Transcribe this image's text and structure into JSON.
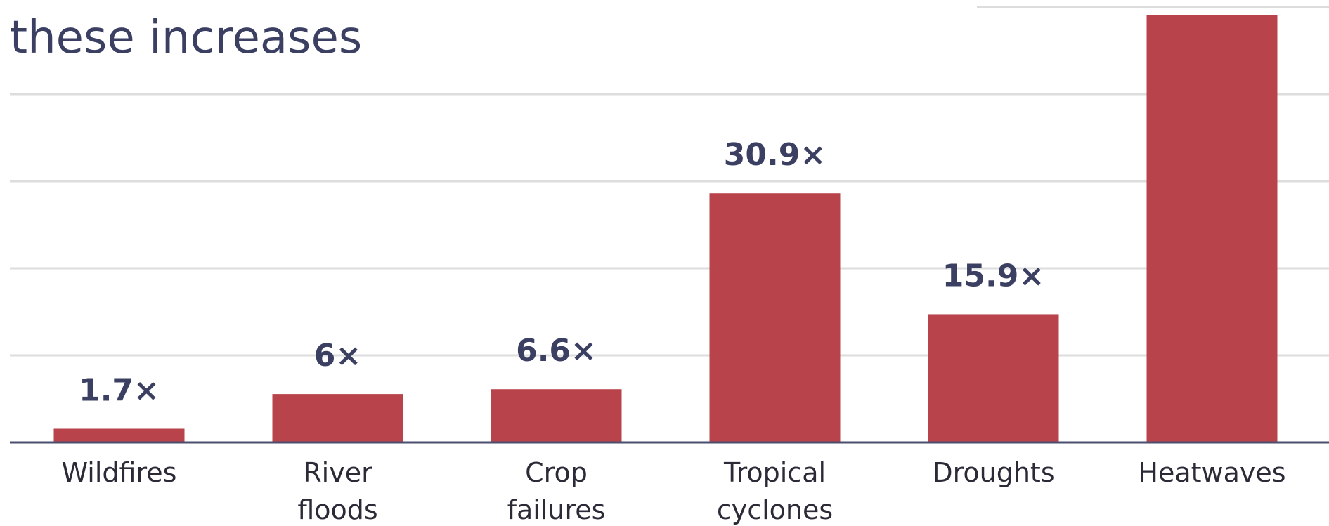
{
  "header": {
    "subtitle": "these increases"
  },
  "chart_data": {
    "type": "bar",
    "categories": [
      "Wildfires",
      "River floods",
      "Crop failures",
      "Tropical cyclones",
      "Droughts",
      "Heatwaves"
    ],
    "category_lines": [
      [
        "Wildfires"
      ],
      [
        "River",
        "floods"
      ],
      [
        "Crop",
        "failures"
      ],
      [
        "Tropical",
        "cyclones"
      ],
      [
        "Droughts"
      ],
      [
        "Heatwaves"
      ]
    ],
    "values": [
      1.7,
      6,
      6.6,
      30.9,
      15.9,
      53
    ],
    "value_labels": [
      "1.7×",
      "6×",
      "6.6×",
      "30.9×",
      "15.9×",
      ""
    ],
    "ylim": [
      0,
      54
    ],
    "grid": true,
    "colors": {
      "bar": "#b9434a",
      "text": "#3b4063",
      "grid": "#dddddd",
      "axis": "#4b4f6d"
    }
  }
}
